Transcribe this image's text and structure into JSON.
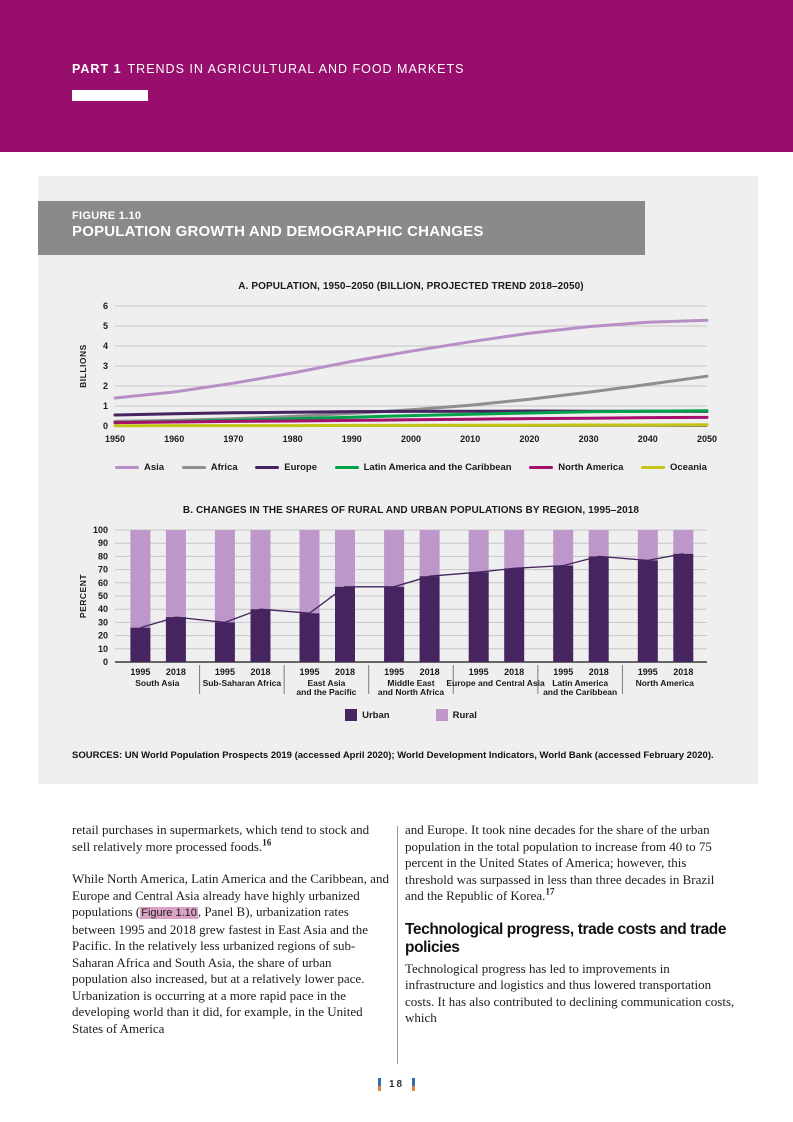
{
  "header": {
    "part_label": "PART 1",
    "part_title": "TRENDS IN AGRICULTURAL AND FOOD MARKETS"
  },
  "figure": {
    "label": "FIGURE 1.10",
    "title": "POPULATION GROWTH AND DEMOGRAPHIC CHANGES",
    "sources": "SOURCES: UN World Population Prospects 2019 (accessed April 2020); World Development Indicators, World Bank (accessed February 2020)."
  },
  "chart_data": [
    {
      "type": "line",
      "title": "A. POPULATION, 1950–2050 (BILLION, PROJECTED TREND 2018–2050)",
      "ylabel": "BILLIONS",
      "ylim": [
        0,
        6
      ],
      "yticks": [
        0,
        1,
        2,
        3,
        4,
        5,
        6
      ],
      "x": [
        1950,
        1960,
        1970,
        1980,
        1990,
        2000,
        2010,
        2020,
        2030,
        2040,
        2050
      ],
      "grid": true,
      "legend_position": "bottom",
      "series": [
        {
          "name": "Asia",
          "color": "#b78fc6",
          "values": [
            1.4,
            1.7,
            2.14,
            2.65,
            3.23,
            3.74,
            4.21,
            4.64,
            4.97,
            5.19,
            5.29
          ]
        },
        {
          "name": "Africa",
          "color": "#8f8f8f",
          "values": [
            0.23,
            0.28,
            0.36,
            0.48,
            0.63,
            0.81,
            1.04,
            1.34,
            1.69,
            2.08,
            2.49
          ]
        },
        {
          "name": "Europe",
          "color": "#45245f",
          "values": [
            0.55,
            0.61,
            0.66,
            0.69,
            0.72,
            0.73,
            0.74,
            0.75,
            0.74,
            0.74,
            0.73
          ]
        },
        {
          "name": "Latin America and the Caribbean",
          "color": "#00a14b",
          "values": [
            0.17,
            0.22,
            0.29,
            0.36,
            0.44,
            0.52,
            0.59,
            0.65,
            0.71,
            0.74,
            0.76
          ]
        },
        {
          "name": "North America",
          "color": "#a5106d",
          "values": [
            0.17,
            0.2,
            0.23,
            0.25,
            0.28,
            0.31,
            0.34,
            0.37,
            0.39,
            0.42,
            0.43
          ]
        },
        {
          "name": "Oceania",
          "color": "#c3c416",
          "values": [
            0.01,
            0.02,
            0.02,
            0.02,
            0.03,
            0.03,
            0.04,
            0.04,
            0.05,
            0.05,
            0.06
          ]
        }
      ]
    },
    {
      "type": "stacked-bar",
      "title": "B. CHANGES IN THE SHARES OF RURAL AND URBAN POPULATIONS BY REGION, 1995–2018",
      "ylabel": "PERCENT",
      "ylim": [
        0,
        100
      ],
      "ytick_step": 10,
      "bar_years": [
        "1995",
        "2018"
      ],
      "groups": [
        {
          "label_lines": [
            "South Asia"
          ],
          "urban": [
            26,
            34
          ],
          "rural": [
            74,
            66
          ]
        },
        {
          "label_lines": [
            "Sub-Saharan Africa"
          ],
          "urban": [
            30,
            40
          ],
          "rural": [
            70,
            60
          ]
        },
        {
          "label_lines": [
            "East Asia",
            "and the Pacific"
          ],
          "urban": [
            37,
            57
          ],
          "rural": [
            63,
            43
          ]
        },
        {
          "label_lines": [
            "Middle East",
            "and North Africa"
          ],
          "urban": [
            57,
            65
          ],
          "rural": [
            43,
            35
          ]
        },
        {
          "label_lines": [
            "Europe and Central Asia"
          ],
          "urban": [
            68,
            71
          ],
          "rural": [
            32,
            29
          ]
        },
        {
          "label_lines": [
            "Latin America",
            "and the Caribbean"
          ],
          "urban": [
            73,
            80
          ],
          "rural": [
            27,
            20
          ]
        },
        {
          "label_lines": [
            "North America"
          ],
          "urban": [
            77,
            82
          ],
          "rural": [
            23,
            18
          ]
        }
      ],
      "legend": [
        {
          "name": "Urban",
          "color": "#45245f"
        },
        {
          "name": "Rural",
          "color": "#bd96ca"
        }
      ],
      "legend_position": "bottom"
    }
  ],
  "body": {
    "left_column": [
      {
        "segments": [
          {
            "text": "retail purchases in supermarkets, which tend to stock and sell relatively more processed foods."
          },
          {
            "text": "16",
            "style": "sup"
          }
        ]
      },
      {
        "segments": [
          {
            "text": "While North America, Latin America and the Caribbean, and Europe and Central Asia already have highly urbanized populations ("
          },
          {
            "text": "Figure 1.10",
            "style": "highlight"
          },
          {
            "text": ", Panel B), urbanization rates between 1995 and 2018 grew fastest in East Asia and the Pacific. In the relatively less urbanized regions of sub-Saharan Africa and South Asia, the share of urban population also increased, but at a relatively lower pace. Urbanization is occurring at a more rapid pace in the developing world than it did, for example, in the United States of America"
          }
        ]
      }
    ],
    "right_column": [
      {
        "segments": [
          {
            "text": "and Europe. It took nine decades for the share of the urban population in the total population to increase from 40 to 75 percent in the United States of America; however, this threshold was surpassed in less than three decades in Brazil and the Republic of Korea."
          },
          {
            "text": "17",
            "style": "sup"
          }
        ]
      },
      {
        "heading": "Technological progress, trade costs and trade policies"
      },
      {
        "segments": [
          {
            "text": "Technological progress has led to improvements in infrastructure and logistics and thus lowered transportation costs. It has also contributed to declining communication costs, which"
          }
        ]
      }
    ]
  },
  "footer": {
    "page_number": "18"
  },
  "colors": {
    "banner": "#970e6c",
    "figure_bg": "#efefef",
    "figure_header_bg": "#8a8a8a",
    "highlight": "#dba2c5",
    "gridline": "#c6c6c6",
    "axis": "#3a3a3a",
    "page_bar_blue": "#2f6db0",
    "page_bar_orange": "#e5813c"
  }
}
